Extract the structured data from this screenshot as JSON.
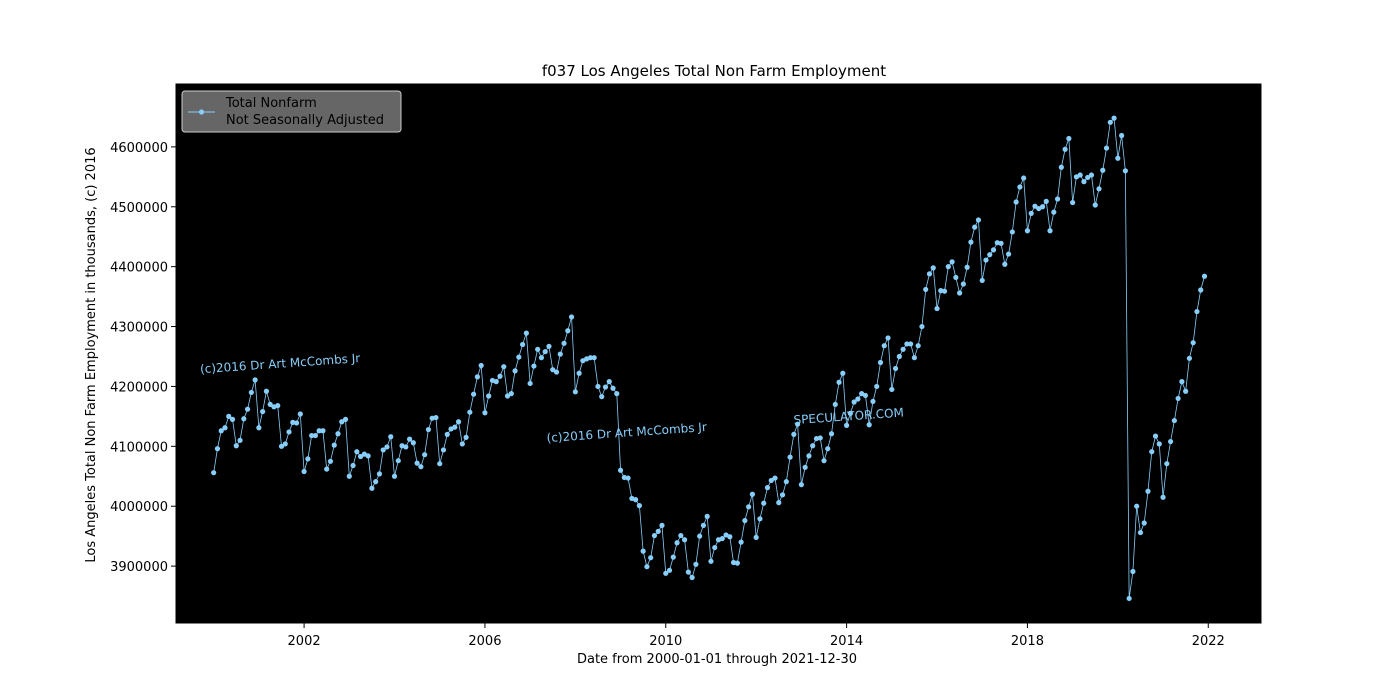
{
  "chart_data": {
    "type": "line",
    "title": "f037 Los Angeles Total Non Farm Employment",
    "xlabel": "Date from 2000-01-01 through 2021-12-30",
    "ylabel": "Los Angeles Total Non Farm Employment in thousands, (c) 2016",
    "xlim": [
      "1999-03-01",
      "2023-03-01"
    ],
    "ylim": [
      3805000,
      4705000
    ],
    "x_ticks": [
      "2002",
      "2006",
      "2010",
      "2014",
      "2018",
      "2022"
    ],
    "y_ticks": [
      3900000,
      4000000,
      4100000,
      4200000,
      4300000,
      4400000,
      4500000,
      4600000
    ],
    "legend": {
      "placement": "top-left",
      "line1": "Total Nonfarm",
      "line2": "Not Seasonally Adjusted"
    },
    "background": "#000000",
    "line_color": "#87cefa",
    "grid": false,
    "annotations": [
      {
        "text": "(c)2016 Dr Art McCombs Jr",
        "x": "1999-09-15",
        "y": 4222000,
        "rotation": -4
      },
      {
        "text": "(c)2016 Dr Art McCombs Jr",
        "x": "2007-05-15",
        "y": 4107000,
        "rotation": -4
      },
      {
        "text": "SPECULATOR.COM",
        "x": "2012-11-01",
        "y": 4137000,
        "rotation": -4
      }
    ],
    "series": [
      {
        "name": "Total Nonfarm",
        "x_start": "2000-01",
        "frequency": "monthly",
        "values": [
          4056000,
          4096000,
          4126000,
          4131000,
          4150000,
          4145000,
          4101000,
          4110000,
          4146000,
          4162000,
          4190000,
          4211000,
          4131000,
          4158000,
          4192000,
          4170000,
          4166000,
          4168000,
          4100000,
          4104000,
          4124000,
          4140000,
          4139000,
          4154000,
          4058000,
          4079000,
          4118000,
          4118000,
          4126000,
          4126000,
          4062000,
          4075000,
          4102000,
          4121000,
          4141000,
          4145000,
          4050000,
          4068000,
          4091000,
          4083000,
          4087000,
          4084000,
          4030000,
          4041000,
          4054000,
          4094000,
          4099000,
          4116000,
          4050000,
          4076000,
          4101000,
          4099000,
          4112000,
          4106000,
          4072000,
          4066000,
          4086000,
          4128000,
          4147000,
          4148000,
          4071000,
          4094000,
          4120000,
          4129000,
          4132000,
          4141000,
          4104000,
          4115000,
          4157000,
          4187000,
          4216000,
          4235000,
          4156000,
          4184000,
          4210000,
          4208000,
          4217000,
          4233000,
          4184000,
          4188000,
          4226000,
          4249000,
          4270000,
          4289000,
          4205000,
          4234000,
          4262000,
          4248000,
          4258000,
          4267000,
          4228000,
          4224000,
          4254000,
          4272000,
          4293000,
          4316000,
          4191000,
          4222000,
          4243000,
          4246000,
          4248000,
          4248000,
          4200000,
          4183000,
          4199000,
          4208000,
          4197000,
          4188000,
          4060000,
          4048000,
          4047000,
          4013000,
          4011000,
          4001000,
          3925000,
          3899000,
          3914000,
          3951000,
          3958000,
          3968000,
          3888000,
          3893000,
          3915000,
          3939000,
          3951000,
          3944000,
          3890000,
          3881000,
          3903000,
          3950000,
          3968000,
          3983000,
          3908000,
          3931000,
          3944000,
          3946000,
          3952000,
          3949000,
          3906000,
          3905000,
          3940000,
          3976000,
          3999000,
          4020000,
          3948000,
          3979000,
          4005000,
          4031000,
          4043000,
          4047000,
          4006000,
          4019000,
          4041000,
          4082000,
          4120000,
          4137000,
          4036000,
          4065000,
          4084000,
          4101000,
          4113000,
          4114000,
          4076000,
          4096000,
          4121000,
          4170000,
          4207000,
          4222000,
          4135000,
          4155000,
          4174000,
          4179000,
          4188000,
          4185000,
          4136000,
          4175000,
          4200000,
          4240000,
          4268000,
          4281000,
          4195000,
          4230000,
          4250000,
          4262000,
          4271000,
          4271000,
          4248000,
          4268000,
          4300000,
          4362000,
          4388000,
          4398000,
          4330000,
          4360000,
          4359000,
          4400000,
          4408000,
          4382000,
          4356000,
          4371000,
          4399000,
          4441000,
          4466000,
          4478000,
          4377000,
          4411000,
          4420000,
          4428000,
          4440000,
          4439000,
          4404000,
          4421000,
          4458000,
          4508000,
          4533000,
          4548000,
          4460000,
          4489000,
          4501000,
          4497000,
          4500000,
          4509000,
          4460000,
          4491000,
          4513000,
          4566000,
          4596000,
          4614000,
          4507000,
          4550000,
          4553000,
          4542000,
          4549000,
          4553000,
          4503000,
          4530000,
          4561000,
          4598000,
          4641000,
          4648000,
          4581000,
          4619000,
          4560000,
          3846000,
          3891000,
          4000000,
          3956000,
          3972000,
          4025000,
          4091000,
          4117000,
          4104000,
          4015000,
          4071000,
          4108000,
          4143000,
          4180000,
          4208000,
          4192000,
          4247000,
          4273000,
          4325000,
          4361000,
          4384000
        ]
      }
    ]
  }
}
